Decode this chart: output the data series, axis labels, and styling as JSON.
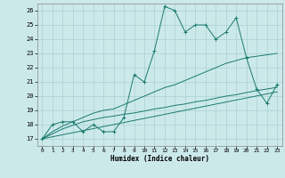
{
  "xlabel": "Humidex (Indice chaleur)",
  "bg_color": "#cce9ea",
  "grid_color": "#aad0d2",
  "line_color": "#1a7a6e",
  "xlim": [
    -0.5,
    23.5
  ],
  "ylim": [
    16.5,
    26.5
  ],
  "s1x": [
    0,
    1,
    2,
    3,
    4,
    5,
    6,
    7,
    8,
    9,
    10,
    11,
    12,
    13,
    14,
    15,
    16,
    17,
    18,
    19,
    20,
    21,
    22,
    23
  ],
  "s1y": [
    17,
    18,
    18.2,
    18.2,
    17.5,
    18,
    17.5,
    17.5,
    18.5,
    21.5,
    21,
    23.2,
    26.3,
    26,
    24.5,
    25,
    25,
    24.0,
    24.5,
    25.5,
    22.7,
    20.5,
    19.5,
    20.8
  ],
  "s2x": [
    0,
    1,
    2,
    3,
    4,
    5,
    6,
    7,
    8,
    9,
    10,
    11,
    12,
    13,
    14,
    15,
    16,
    17,
    18,
    19,
    20,
    21,
    22,
    23
  ],
  "s2y": [
    17,
    17.5,
    17.9,
    18.2,
    18.5,
    18.8,
    19.0,
    19.1,
    19.4,
    19.7,
    20.0,
    20.3,
    20.6,
    20.8,
    21.1,
    21.4,
    21.7,
    22.0,
    22.3,
    22.5,
    22.7,
    22.8,
    22.9,
    23.0
  ],
  "s3x": [
    0,
    1,
    2,
    3,
    4,
    5,
    6,
    7,
    8,
    9,
    10,
    11,
    12,
    13,
    14,
    15,
    16,
    17,
    18,
    19,
    20,
    21,
    22,
    23
  ],
  "s3y": [
    17,
    17.35,
    17.7,
    17.95,
    18.2,
    18.35,
    18.5,
    18.6,
    18.72,
    18.82,
    18.95,
    19.1,
    19.2,
    19.35,
    19.45,
    19.6,
    19.7,
    19.85,
    20.0,
    20.1,
    20.25,
    20.38,
    20.5,
    20.62
  ],
  "s4x": [
    0,
    23
  ],
  "s4y": [
    17,
    20.3
  ]
}
